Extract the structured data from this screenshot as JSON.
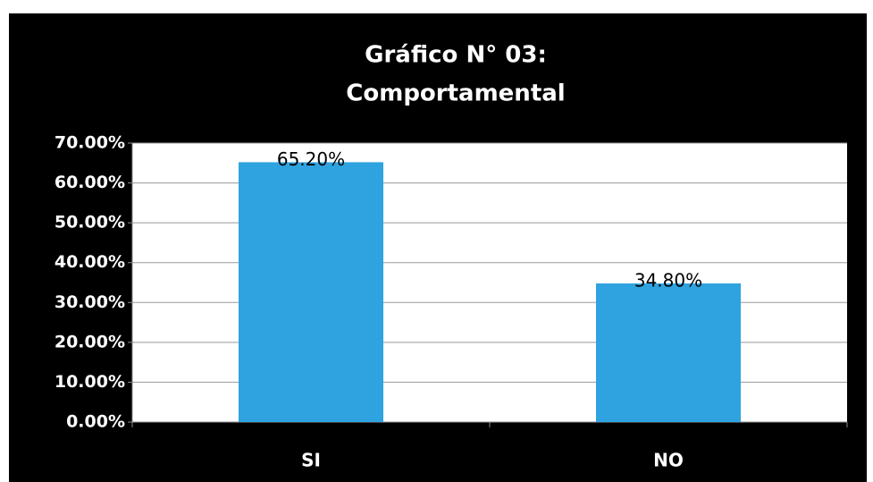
{
  "chart_data": {
    "type": "bar",
    "title": "Gráfico  N° 03:",
    "subtitle": "Comportamental",
    "categories": [
      "SI",
      "NO"
    ],
    "values": [
      65.2,
      34.8
    ],
    "value_labels": [
      "65.20%",
      "34.80%"
    ],
    "color": "#2fa3e0",
    "ylim": [
      0,
      70
    ],
    "yticks": [
      {
        "value": 0,
        "label": "0.00%"
      },
      {
        "value": 10,
        "label": "10.00%"
      },
      {
        "value": 20,
        "label": "20.00%"
      },
      {
        "value": 30,
        "label": "30.00%"
      },
      {
        "value": 40,
        "label": "40.00%"
      },
      {
        "value": 50,
        "label": "50.00%"
      },
      {
        "value": 60,
        "label": "60.00%"
      },
      {
        "value": 70,
        "label": "70.00%"
      }
    ],
    "grid": true
  }
}
